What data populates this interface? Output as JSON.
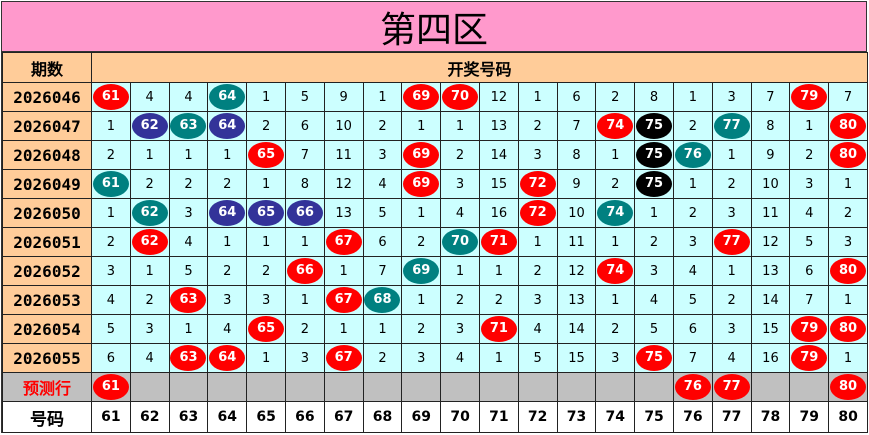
{
  "title": "第四区",
  "header": {
    "period_label": "期数",
    "draw_label": "开奖号码"
  },
  "colors": {
    "r": "#ff0000",
    "g": "#008080",
    "b": "#333399",
    "k": "#000000",
    "title_bg": "#ff99cc",
    "header_bg": "#ffcc99",
    "cell_bg": "#ccffff",
    "pred_bg": "#c0c0c0"
  },
  "rows": [
    {
      "period": "2026046",
      "cells": [
        "61",
        "4",
        "4",
        "64",
        "1",
        "5",
        "9",
        "1",
        "69",
        "70",
        "12",
        "1",
        "6",
        "2",
        "8",
        "1",
        "3",
        "7",
        "79",
        "7"
      ],
      "hits": [
        "r",
        "",
        "",
        "g",
        "",
        "",
        "",
        "",
        "r",
        "r",
        "",
        "",
        "",
        "",
        "",
        "",
        "",
        "",
        "r",
        ""
      ]
    },
    {
      "period": "2026047",
      "cells": [
        "1",
        "62",
        "63",
        "64",
        "2",
        "6",
        "10",
        "2",
        "1",
        "1",
        "13",
        "2",
        "7",
        "74",
        "75",
        "2",
        "77",
        "8",
        "1",
        "80"
      ],
      "hits": [
        "",
        "b",
        "g",
        "b",
        "",
        "",
        "",
        "",
        "",
        "",
        "",
        "",
        "",
        "r",
        "k",
        "",
        "g",
        "",
        "",
        "r"
      ]
    },
    {
      "period": "2026048",
      "cells": [
        "2",
        "1",
        "1",
        "1",
        "65",
        "7",
        "11",
        "3",
        "69",
        "2",
        "14",
        "3",
        "8",
        "1",
        "75",
        "76",
        "1",
        "9",
        "2",
        "80"
      ],
      "hits": [
        "",
        "",
        "",
        "",
        "r",
        "",
        "",
        "",
        "r",
        "",
        "",
        "",
        "",
        "",
        "k",
        "g",
        "",
        "",
        "",
        "r"
      ]
    },
    {
      "period": "2026049",
      "cells": [
        "61",
        "2",
        "2",
        "2",
        "1",
        "8",
        "12",
        "4",
        "69",
        "3",
        "15",
        "72",
        "9",
        "2",
        "75",
        "1",
        "2",
        "10",
        "3",
        "1"
      ],
      "hits": [
        "g",
        "",
        "",
        "",
        "",
        "",
        "",
        "",
        "r",
        "",
        "",
        "r",
        "",
        "",
        "k",
        "",
        "",
        "",
        "",
        ""
      ]
    },
    {
      "period": "2026050",
      "cells": [
        "1",
        "62",
        "3",
        "64",
        "65",
        "66",
        "13",
        "5",
        "1",
        "4",
        "16",
        "72",
        "10",
        "74",
        "1",
        "2",
        "3",
        "11",
        "4",
        "2"
      ],
      "hits": [
        "",
        "g",
        "",
        "b",
        "b",
        "b",
        "",
        "",
        "",
        "",
        "",
        "r",
        "",
        "g",
        "",
        "",
        "",
        "",
        "",
        ""
      ]
    },
    {
      "period": "2026051",
      "cells": [
        "2",
        "62",
        "4",
        "1",
        "1",
        "1",
        "67",
        "6",
        "2",
        "70",
        "71",
        "1",
        "11",
        "1",
        "2",
        "3",
        "77",
        "12",
        "5",
        "3"
      ],
      "hits": [
        "",
        "r",
        "",
        "",
        "",
        "",
        "r",
        "",
        "",
        "g",
        "r",
        "",
        "",
        "",
        "",
        "",
        "r",
        "",
        "",
        ""
      ]
    },
    {
      "period": "2026052",
      "cells": [
        "3",
        "1",
        "5",
        "2",
        "2",
        "66",
        "1",
        "7",
        "69",
        "1",
        "1",
        "2",
        "12",
        "74",
        "3",
        "4",
        "1",
        "13",
        "6",
        "80"
      ],
      "hits": [
        "",
        "",
        "",
        "",
        "",
        "r",
        "",
        "",
        "g",
        "",
        "",
        "",
        "",
        "r",
        "",
        "",
        "",
        "",
        "",
        "r"
      ]
    },
    {
      "period": "2026053",
      "cells": [
        "4",
        "2",
        "63",
        "3",
        "3",
        "1",
        "67",
        "68",
        "1",
        "2",
        "2",
        "3",
        "13",
        "1",
        "4",
        "5",
        "2",
        "14",
        "7",
        "1"
      ],
      "hits": [
        "",
        "",
        "r",
        "",
        "",
        "",
        "r",
        "g",
        "",
        "",
        "",
        "",
        "",
        "",
        "",
        "",
        "",
        "",
        "",
        ""
      ]
    },
    {
      "period": "2026054",
      "cells": [
        "5",
        "3",
        "1",
        "4",
        "65",
        "2",
        "1",
        "1",
        "2",
        "3",
        "71",
        "4",
        "14",
        "2",
        "5",
        "6",
        "3",
        "15",
        "79",
        "80"
      ],
      "hits": [
        "",
        "",
        "",
        "",
        "r",
        "",
        "",
        "",
        "",
        "",
        "r",
        "",
        "",
        "",
        "",
        "",
        "",
        "",
        "r",
        "r"
      ]
    },
    {
      "period": "2026055",
      "cells": [
        "6",
        "4",
        "63",
        "64",
        "1",
        "3",
        "67",
        "2",
        "3",
        "4",
        "1",
        "5",
        "15",
        "3",
        "75",
        "7",
        "4",
        "16",
        "79",
        "1"
      ],
      "hits": [
        "",
        "",
        "r",
        "r",
        "",
        "",
        "r",
        "",
        "",
        "",
        "",
        "",
        "",
        "",
        "r",
        "",
        "",
        "",
        "r",
        ""
      ]
    }
  ],
  "prediction": {
    "label": "预测行",
    "cells": [
      "61",
      "",
      "",
      "",
      "",
      "",
      "",
      "",
      "",
      "",
      "",
      "",
      "",
      "",
      "",
      "76",
      "77",
      "",
      "",
      "80"
    ],
    "hits": [
      "r",
      "",
      "",
      "",
      "",
      "",
      "",
      "",
      "",
      "",
      "",
      "",
      "",
      "",
      "",
      "r",
      "r",
      "",
      "",
      "r"
    ]
  },
  "footer": {
    "label": "号码",
    "numbers": [
      "61",
      "62",
      "63",
      "64",
      "65",
      "66",
      "67",
      "68",
      "69",
      "70",
      "71",
      "72",
      "73",
      "74",
      "75",
      "76",
      "77",
      "78",
      "79",
      "80"
    ]
  }
}
